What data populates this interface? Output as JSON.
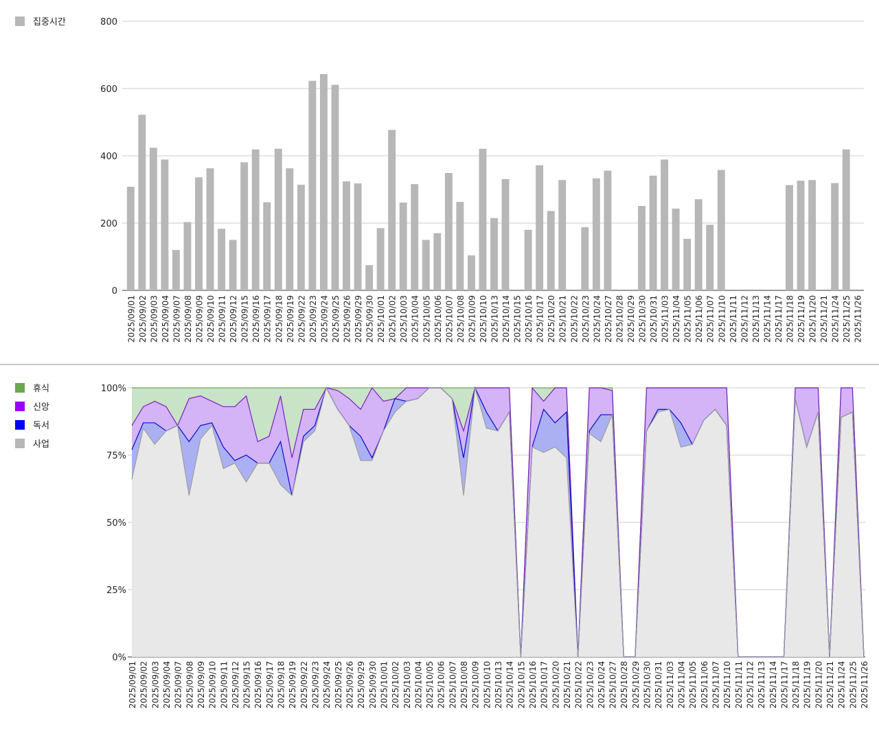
{
  "chart_data": [
    {
      "type": "bar",
      "title": "",
      "xlabel": "",
      "ylabel": "",
      "ylim": [
        0,
        800
      ],
      "yticks": [
        "0",
        "200",
        "400",
        "600",
        "800"
      ],
      "legend_position": "top-left",
      "grid": true,
      "series": [
        {
          "name": "집중시간",
          "color": "#b7b7b7"
        }
      ],
      "categories": [
        "2025/09/01",
        "2025/09/02",
        "2025/09/03",
        "2025/09/04",
        "2025/09/07",
        "2025/09/08",
        "2025/09/09",
        "2025/09/10",
        "2025/09/11",
        "2025/09/12",
        "2025/09/15",
        "2025/09/16",
        "2025/09/17",
        "2025/09/18",
        "2025/09/19",
        "2025/09/22",
        "2025/09/23",
        "2025/09/24",
        "2025/09/25",
        "2025/09/26",
        "2025/09/29",
        "2025/09/30",
        "2025/10/01",
        "2025/10/02",
        "2025/10/03",
        "2025/10/04",
        "2025/10/05",
        "2025/10/06",
        "2025/10/07",
        "2025/10/08",
        "2025/10/09",
        "2025/10/10",
        "2025/10/13",
        "2025/10/14",
        "2025/10/15",
        "2025/10/16",
        "2025/10/17",
        "2025/10/20",
        "2025/10/21",
        "2025/10/22",
        "2025/10/23",
        "2025/10/24",
        "2025/10/27",
        "2025/10/28",
        "2025/10/29",
        "2025/10/30",
        "2025/10/31",
        "2025/11/03",
        "2025/11/04",
        "2025/11/05",
        "2025/11/06",
        "2025/11/07",
        "2025/11/10",
        "2025/11/11",
        "2025/11/12",
        "2025/11/13",
        "2025/11/14",
        "2025/11/17",
        "2025/11/18",
        "2025/11/19",
        "2025/11/20",
        "2025/11/21",
        "2025/11/24",
        "2025/11/25",
        "2025/11/26"
      ],
      "values": [
        308,
        522,
        424,
        389,
        120,
        203,
        336,
        363,
        183,
        150,
        381,
        419,
        262,
        421,
        363,
        314,
        623,
        643,
        611,
        324,
        318,
        75,
        185,
        477,
        261,
        316,
        150,
        170,
        349,
        263,
        104,
        421,
        215,
        331,
        0,
        180,
        372,
        236,
        328,
        0,
        188,
        333,
        356,
        0,
        0,
        251,
        341,
        389,
        243,
        153,
        271,
        195,
        358,
        0,
        0,
        0,
        0,
        0,
        313,
        326,
        328,
        0,
        319,
        419,
        0
      ]
    },
    {
      "type": "area",
      "stacked": "percent",
      "title": "",
      "xlabel": "",
      "ylabel": "",
      "ylim": [
        0,
        100
      ],
      "yticks": [
        "0%",
        "25%",
        "50%",
        "75%",
        "100%"
      ],
      "legend_position": "top-left",
      "grid": true,
      "categories": [
        "2025/09/01",
        "2025/09/02",
        "2025/09/03",
        "2025/09/04",
        "2025/09/07",
        "2025/09/08",
        "2025/09/09",
        "2025/09/10",
        "2025/09/11",
        "2025/09/12",
        "2025/09/15",
        "2025/09/16",
        "2025/09/17",
        "2025/09/18",
        "2025/09/19",
        "2025/09/22",
        "2025/09/23",
        "2025/09/24",
        "2025/09/25",
        "2025/09/26",
        "2025/09/29",
        "2025/09/30",
        "2025/10/01",
        "2025/10/02",
        "2025/10/03",
        "2025/10/04",
        "2025/10/05",
        "2025/10/06",
        "2025/10/07",
        "2025/10/08",
        "2025/10/09",
        "2025/10/10",
        "2025/10/13",
        "2025/10/14",
        "2025/10/15",
        "2025/10/16",
        "2025/10/17",
        "2025/10/20",
        "2025/10/21",
        "2025/10/22",
        "2025/10/23",
        "2025/10/24",
        "2025/10/27",
        "2025/10/28",
        "2025/10/29",
        "2025/10/30",
        "2025/10/31",
        "2025/11/03",
        "2025/11/04",
        "2025/11/05",
        "2025/11/06",
        "2025/11/07",
        "2025/11/10",
        "2025/11/11",
        "2025/11/12",
        "2025/11/13",
        "2025/11/14",
        "2025/11/17",
        "2025/11/18",
        "2025/11/19",
        "2025/11/20",
        "2025/11/21",
        "2025/11/24",
        "2025/11/25",
        "2025/11/26"
      ],
      "series": [
        {
          "name": "사업",
          "color": "#b7b7b7",
          "values": [
            66,
            85,
            79,
            84,
            86,
            60,
            81,
            86,
            70,
            72,
            65,
            72,
            72,
            64,
            60,
            80,
            84,
            100,
            92,
            86,
            73,
            73,
            84,
            91,
            95,
            96,
            100,
            100,
            96,
            60,
            100,
            85,
            84,
            91,
            0,
            78,
            76,
            78,
            74,
            0,
            83,
            80,
            90,
            0,
            0,
            84,
            91,
            92,
            78,
            79,
            88,
            92,
            86,
            0,
            0,
            0,
            0,
            0,
            96,
            78,
            91,
            0,
            89,
            91,
            0
          ]
        },
        {
          "name": "독서",
          "color": "#0000ff",
          "values": [
            11,
            2,
            8,
            0,
            0,
            20,
            5,
            1,
            8,
            1,
            10,
            0,
            0,
            16,
            0,
            2,
            2,
            0,
            0,
            0,
            9,
            1,
            0,
            5,
            0,
            0,
            0,
            0,
            0,
            14,
            0,
            6,
            0,
            0,
            0,
            0,
            16,
            9,
            17,
            0,
            1,
            10,
            0,
            0,
            0,
            0,
            1,
            0,
            9,
            0,
            0,
            0,
            0,
            0,
            0,
            0,
            0,
            0,
            0,
            0,
            0,
            0,
            0,
            0,
            0
          ]
        },
        {
          "name": "신앙",
          "color": "#9900ff",
          "values": [
            9,
            6,
            8,
            9,
            0,
            16,
            11,
            8,
            15,
            20,
            22,
            8,
            10,
            17,
            14,
            10,
            6,
            0,
            7,
            10,
            10,
            26,
            11,
            0,
            5,
            4,
            0,
            0,
            0,
            10,
            0,
            9,
            16,
            9,
            0,
            22,
            3,
            13,
            9,
            0,
            16,
            10,
            9,
            0,
            0,
            16,
            8,
            8,
            13,
            21,
            12,
            8,
            14,
            0,
            0,
            0,
            0,
            0,
            4,
            22,
            9,
            0,
            11,
            9,
            0
          ]
        },
        {
          "name": "휴식",
          "color": "#6aa84f",
          "values": [
            14,
            7,
            5,
            7,
            14,
            4,
            3,
            5,
            7,
            7,
            3,
            20,
            18,
            3,
            26,
            8,
            8,
            0,
            1,
            4,
            8,
            0,
            5,
            4,
            0,
            0,
            0,
            0,
            4,
            16,
            0,
            0,
            0,
            0,
            0,
            0,
            5,
            0,
            0,
            0,
            0,
            0,
            1,
            0,
            0,
            0,
            0,
            0,
            0,
            0,
            0,
            0,
            0,
            0,
            0,
            0,
            0,
            0,
            0,
            0,
            0,
            0,
            0,
            0,
            0
          ]
        }
      ]
    }
  ]
}
